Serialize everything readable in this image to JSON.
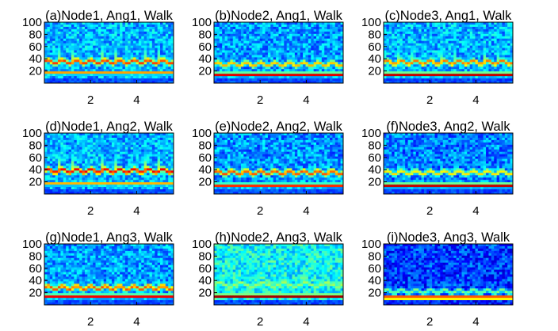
{
  "colors": {
    "colormap": "jet",
    "axis": "#000000",
    "background": "#ffffff"
  },
  "chart_data": [
    {
      "type": "heatmap",
      "title": "(a)Node1, Ang1, Walk",
      "xticks": [
        "2",
        "4"
      ],
      "yticks": [
        "20",
        "40",
        "60",
        "80",
        "100"
      ],
      "xlim": [
        0,
        5.6
      ],
      "ylim": [
        0,
        100
      ],
      "bands": [
        {
          "label": "constant low-frequency band",
          "y_center": 17,
          "intensity": 0.72
        },
        {
          "label": "gait modulated band",
          "y_center": 35,
          "intensity": 0.82,
          "peaks": 9,
          "peak_height": 90
        }
      ],
      "background_level": 0.3
    },
    {
      "type": "heatmap",
      "title": "(b)Node2, Ang1, Walk",
      "xticks": [
        "2",
        "4"
      ],
      "yticks": [
        "20",
        "40",
        "60",
        "80",
        "100"
      ],
      "xlim": [
        0,
        5.6
      ],
      "ylim": [
        0,
        100
      ],
      "bands": [
        {
          "label": "constant low-frequency band",
          "y_center": 14,
          "intensity": 0.92
        },
        {
          "label": "gait modulated band",
          "y_center": 31,
          "intensity": 0.7,
          "peaks": 9,
          "peak_height": 38
        }
      ],
      "background_level": 0.28
    },
    {
      "type": "heatmap",
      "title": "(c)Node3, Ang1, Walk",
      "xticks": [
        "2",
        "4"
      ],
      "yticks": [
        "20",
        "40",
        "60",
        "80",
        "100"
      ],
      "xlim": [
        0,
        5.6
      ],
      "ylim": [
        0,
        100
      ],
      "bands": [
        {
          "label": "constant low-frequency band",
          "y_center": 14,
          "intensity": 0.95
        },
        {
          "label": "gait modulated band",
          "y_center": 34,
          "intensity": 0.76,
          "peaks": 9,
          "peak_height": 88
        }
      ],
      "background_level": 0.3
    },
    {
      "type": "heatmap",
      "title": "(d)Node1, Ang2, Walk",
      "xticks": [
        "2",
        "4"
      ],
      "yticks": [
        "20",
        "40",
        "60",
        "80",
        "100"
      ],
      "xlim": [
        0,
        5.6
      ],
      "ylim": [
        0,
        100
      ],
      "bands": [
        {
          "label": "constant low-frequency band",
          "y_center": 17,
          "intensity": 0.7
        },
        {
          "label": "gait modulated band",
          "y_center": 38,
          "intensity": 0.88,
          "peaks": 9,
          "peak_height": 92
        }
      ],
      "background_level": 0.3
    },
    {
      "type": "heatmap",
      "title": "(e)Node2, Ang2, Walk",
      "xticks": [
        "2",
        "4"
      ],
      "yticks": [
        "20",
        "40",
        "60",
        "80",
        "100"
      ],
      "xlim": [
        0,
        5.6
      ],
      "ylim": [
        0,
        100
      ],
      "bands": [
        {
          "label": "constant low-frequency band",
          "y_center": 14,
          "intensity": 0.85
        },
        {
          "label": "gait modulated band",
          "y_center": 35,
          "intensity": 0.8,
          "peaks": 9,
          "peak_height": 62
        }
      ],
      "background_level": 0.27
    },
    {
      "type": "heatmap",
      "title": "(f)Node3, Ang2, Walk",
      "xticks": [
        "2",
        "4"
      ],
      "yticks": [
        "20",
        "40",
        "60",
        "80",
        "100"
      ],
      "xlim": [
        0,
        5.6
      ],
      "ylim": [
        0,
        100
      ],
      "bands": [
        {
          "label": "constant low-frequency band",
          "y_center": 14,
          "intensity": 0.95
        },
        {
          "label": "gait modulated band",
          "y_center": 35,
          "intensity": 0.66,
          "peaks": 9,
          "peak_height": 72
        }
      ],
      "background_level": 0.25
    },
    {
      "type": "heatmap",
      "title": "(g)Node1, Ang3, Walk",
      "xticks": [
        "2",
        "4"
      ],
      "yticks": [
        "20",
        "40",
        "60",
        "80",
        "100"
      ],
      "xlim": [
        0,
        5.6
      ],
      "ylim": [
        0,
        100
      ],
      "bands": [
        {
          "label": "constant low-frequency band",
          "y_center": 14,
          "intensity": 0.9
        },
        {
          "label": "gait modulated band",
          "y_center": 28,
          "intensity": 0.8,
          "peaks": 9,
          "peak_height": 55
        }
      ],
      "background_level": 0.28
    },
    {
      "type": "heatmap",
      "title": "(h)Node2, Ang3, Walk",
      "xticks": [
        "2",
        "4"
      ],
      "yticks": [
        "20",
        "40",
        "60",
        "80",
        "100"
      ],
      "xlim": [
        0,
        5.6
      ],
      "ylim": [
        0,
        100
      ],
      "bands": [
        {
          "label": "constant low-frequency band",
          "y_center": 14,
          "intensity": 0.98
        },
        {
          "label": "gait modulated band",
          "y_center": 33,
          "intensity": 0.55,
          "peaks": 6,
          "peak_height": 45
        }
      ],
      "background_level": 0.38
    },
    {
      "type": "heatmap",
      "title": "(i)Node3, Ang3, Walk",
      "xticks": [
        "2",
        "4"
      ],
      "yticks": [
        "20",
        "40",
        "60",
        "80",
        "100"
      ],
      "xlim": [
        0,
        5.6
      ],
      "ylim": [
        0,
        100
      ],
      "bands": [
        {
          "label": "constant low-frequency band",
          "y_center": 12,
          "intensity": 0.9
        },
        {
          "label": "gait modulated band",
          "y_center": 22,
          "intensity": 0.5,
          "peaks": 9,
          "peak_height": 30
        }
      ],
      "background_level": 0.18
    }
  ]
}
